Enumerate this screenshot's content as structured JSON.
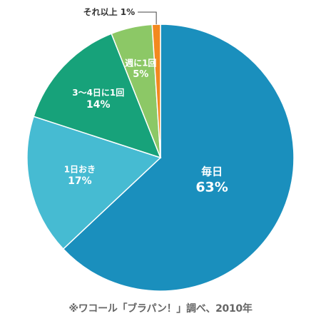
{
  "chart_data": {
    "type": "pie",
    "start": "12 o'clock",
    "direction": "clockwise",
    "slices": [
      {
        "label": "毎日",
        "value": 63,
        "value_label": "63%",
        "color": "#1a8fbd"
      },
      {
        "label": "1日おき",
        "value": 17,
        "value_label": "17%",
        "color": "#46bbd2"
      },
      {
        "label": "3～4日に1回",
        "value": 14,
        "value_label": "14%",
        "color": "#17a27a"
      },
      {
        "label": "週に1回",
        "value": 5,
        "value_label": "5%",
        "color": "#8cc866"
      },
      {
        "label": "それ以上 1%",
        "value": 1,
        "value_label": "",
        "color": "#f2891f"
      }
    ]
  },
  "caption": "※ワコール「ブラパン！」調べ、2010年"
}
